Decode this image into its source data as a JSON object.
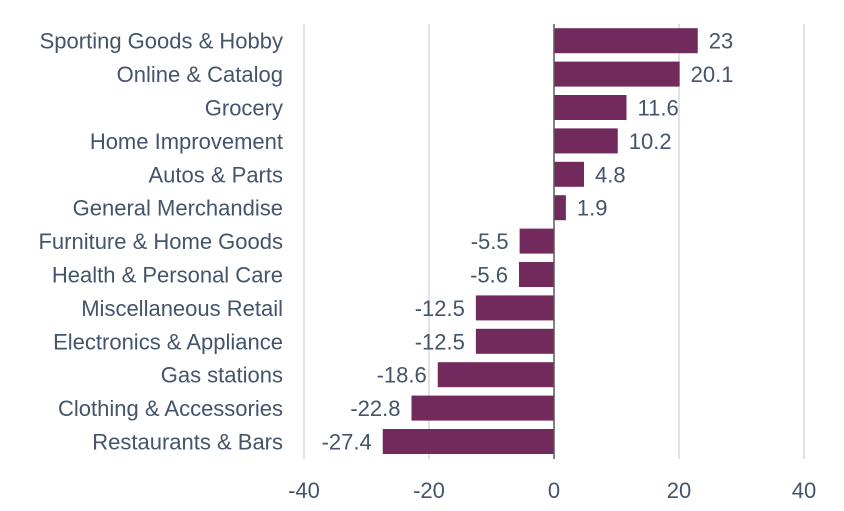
{
  "chart_data": {
    "type": "bar",
    "orientation": "horizontal",
    "title": "",
    "xlabel": "",
    "ylabel": "",
    "categories": [
      "Sporting Goods & Hobby",
      "Online & Catalog",
      "Grocery",
      "Home Improvement",
      "Autos & Parts",
      "General Merchandise",
      "Furniture & Home Goods",
      "Health & Personal Care",
      "Miscellaneous Retail",
      "Electronics & Appliance",
      "Gas stations",
      "Clothing & Accessories",
      "Restaurants & Bars"
    ],
    "values": [
      23,
      20.1,
      11.6,
      10.2,
      4.8,
      1.9,
      -5.5,
      -5.6,
      -12.5,
      -12.5,
      -18.6,
      -22.8,
      -27.4
    ],
    "value_labels": [
      "23",
      "20.1",
      "11.6",
      "10.2",
      "4.8",
      "1.9",
      "-5.5",
      "-5.6",
      "-12.5",
      "-12.5",
      "-18.6",
      "-22.8",
      "-27.4"
    ],
    "xlim": [
      -40,
      40
    ],
    "xticks": [
      "-40",
      "-20",
      "0",
      "20",
      "40"
    ],
    "xtick_values": [
      -40,
      -20,
      0,
      20,
      40
    ],
    "grid": true,
    "bar_color": "#722a5c",
    "text_color": "#44546a",
    "legend": "none"
  }
}
